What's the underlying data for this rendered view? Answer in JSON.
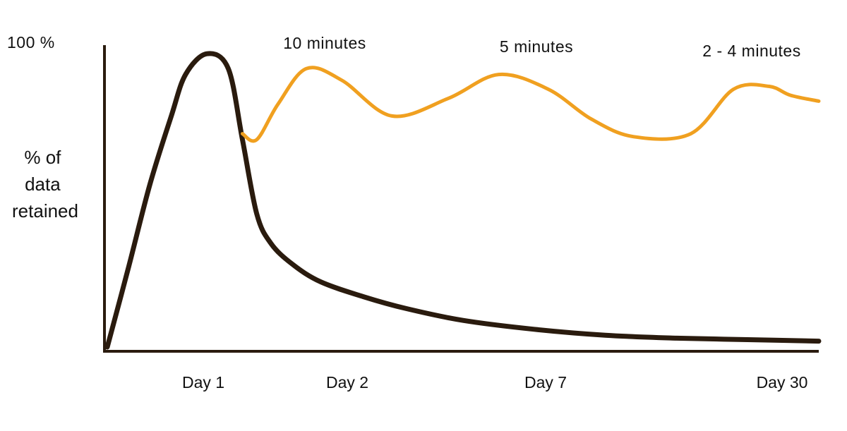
{
  "chart_data": {
    "type": "line",
    "title": "",
    "xlabel": "",
    "ylabel": "% of data retained",
    "y_top_label": "100 %",
    "ylim": [
      0,
      100
    ],
    "x_tick_labels": [
      "Day 1",
      "Day 2",
      "Day 7",
      "Day 30"
    ],
    "annotations": [
      "10 minutes",
      "5 minutes",
      "2 - 4 minutes"
    ],
    "grid": false,
    "legend": "none",
    "series": [
      {
        "color": "#2a1b0e",
        "x": [
          0.0,
          0.03,
          0.06,
          0.09,
          0.11,
          0.14,
          0.17,
          0.19,
          0.21,
          0.23,
          0.26,
          0.3,
          0.36,
          0.42,
          0.5,
          0.6,
          0.7,
          0.8,
          0.9,
          1.0
        ],
        "values": [
          0,
          27,
          55,
          78,
          92,
          99,
          94,
          70,
          45,
          35,
          28,
          22,
          17,
          13,
          9,
          6,
          4,
          3,
          2.5,
          2
        ]
      },
      {
        "color": "#f0a020",
        "x": [
          0.19,
          0.21,
          0.24,
          0.28,
          0.33,
          0.4,
          0.48,
          0.55,
          0.62,
          0.68,
          0.74,
          0.82,
          0.88,
          0.93,
          0.96,
          1.0
        ],
        "values": [
          72,
          70,
          82,
          94,
          90,
          78,
          84,
          92,
          87,
          77,
          71,
          72,
          87,
          88,
          85,
          83
        ]
      }
    ]
  }
}
